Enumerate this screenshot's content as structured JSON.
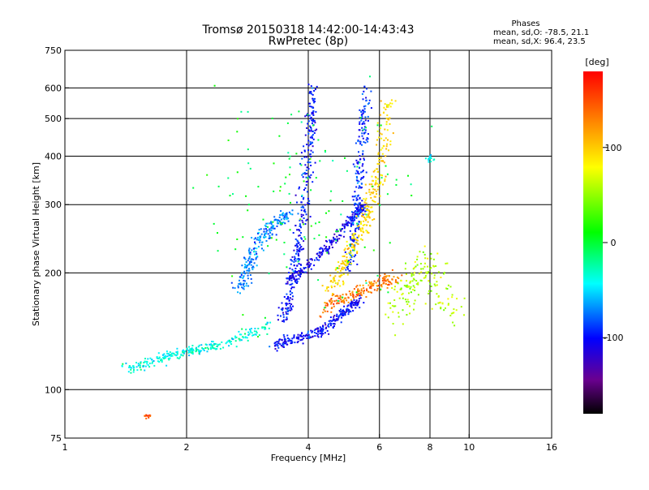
{
  "chart_data": {
    "type": "scatter",
    "title": "Tromsø 20150318 14:42:00-14:43:43",
    "subtitle": "RwPretec (8p)",
    "xlabel": "Frequency [MHz]",
    "ylabel": "Stationary phase Virtual Height [km]",
    "x_scale": "log",
    "y_scale": "log",
    "xlim": [
      1,
      16
    ],
    "ylim": [
      75,
      750
    ],
    "x_ticks": [
      1,
      2,
      4,
      6,
      8,
      10,
      16
    ],
    "y_ticks": [
      75,
      100,
      200,
      300,
      400,
      500,
      600,
      750
    ],
    "x_grid": [
      2,
      4,
      6,
      8,
      10
    ],
    "y_grid": [
      100,
      200,
      300,
      400,
      500,
      600
    ],
    "grid": true,
    "phase_stats": {
      "heading": "Phases",
      "line_o": "mean, sd,O: -78.5, 21.1",
      "line_x": "mean, sd,X:  96.4, 23.5"
    },
    "colorbar": {
      "label": "[deg]",
      "range": [
        -180,
        180
      ],
      "ticks": [
        100,
        0,
        -100
      ],
      "colormap": "rainbow (black-purple-blue-cyan-green-yellow-orange-red)",
      "placement": "right"
    },
    "clusters": [
      {
        "name": "low-frequency cyan trace",
        "phase": -35,
        "points": [
          [
            1.4,
            115
          ],
          [
            1.5,
            113
          ],
          [
            1.6,
            117
          ],
          [
            1.7,
            120
          ],
          [
            1.8,
            122
          ],
          [
            1.9,
            124
          ],
          [
            2.0,
            125
          ],
          [
            2.1,
            126
          ],
          [
            2.2,
            128
          ],
          [
            2.4,
            130
          ],
          [
            2.6,
            134
          ],
          [
            2.8,
            138
          ],
          [
            3.0,
            142
          ],
          [
            3.2,
            146
          ]
        ],
        "spread": 0.03,
        "count": 260
      },
      {
        "name": "F-region rising band",
        "phase": -70,
        "points": [
          [
            2.7,
            180
          ],
          [
            2.8,
            200
          ],
          [
            2.9,
            220
          ],
          [
            3.0,
            240
          ],
          [
            3.2,
            260
          ],
          [
            3.4,
            275
          ],
          [
            3.6,
            285
          ]
        ],
        "spread": 0.04,
        "count": 220
      },
      {
        "name": "dense blue F-trace",
        "phase": -95,
        "points": [
          [
            3.4,
            150
          ],
          [
            3.6,
            170
          ],
          [
            3.7,
            200
          ],
          [
            3.8,
            240
          ],
          [
            3.9,
            300
          ],
          [
            4.0,
            380
          ],
          [
            4.05,
            480
          ],
          [
            4.1,
            600
          ]
        ],
        "spread": 0.035,
        "count": 320
      },
      {
        "name": "lower blue echo band",
        "phase": -100,
        "points": [
          [
            3.3,
            130
          ],
          [
            3.7,
            135
          ],
          [
            4.2,
            140
          ],
          [
            4.6,
            150
          ],
          [
            5.0,
            160
          ],
          [
            5.4,
            170
          ]
        ],
        "spread": 0.03,
        "count": 260
      },
      {
        "name": "mid blue band",
        "phase": -105,
        "points": [
          [
            3.6,
            190
          ],
          [
            4.0,
            210
          ],
          [
            4.4,
            230
          ],
          [
            4.8,
            255
          ],
          [
            5.2,
            280
          ],
          [
            5.5,
            300
          ]
        ],
        "spread": 0.03,
        "count": 220
      },
      {
        "name": "upper blue trace near 5.4 MHz",
        "phase": -90,
        "points": [
          [
            5.0,
            200
          ],
          [
            5.2,
            260
          ],
          [
            5.3,
            320
          ],
          [
            5.4,
            400
          ],
          [
            5.5,
            500
          ],
          [
            5.6,
            600
          ]
        ],
        "spread": 0.03,
        "count": 220
      },
      {
        "name": "yellow X-mode trace",
        "phase": 95,
        "points": [
          [
            4.5,
            180
          ],
          [
            4.8,
            200
          ],
          [
            5.0,
            220
          ],
          [
            5.3,
            250
          ],
          [
            5.6,
            280
          ],
          [
            5.8,
            320
          ],
          [
            6.0,
            380
          ],
          [
            6.2,
            460
          ],
          [
            6.3,
            560
          ]
        ],
        "spread": 0.045,
        "count": 300
      },
      {
        "name": "orange low X band",
        "phase": 135,
        "points": [
          [
            4.3,
            160
          ],
          [
            4.6,
            170
          ],
          [
            5.0,
            175
          ],
          [
            5.4,
            180
          ],
          [
            5.8,
            185
          ],
          [
            6.2,
            190
          ],
          [
            6.6,
            195
          ]
        ],
        "spread": 0.04,
        "count": 180
      },
      {
        "name": "scattered high-frequency echoes",
        "phase": 60,
        "points": [
          [
            6.5,
            150
          ],
          [
            7.0,
            180
          ],
          [
            7.5,
            200
          ],
          [
            8.0,
            220
          ],
          [
            8.5,
            180
          ],
          [
            9.0,
            160
          ]
        ],
        "spread": 0.09,
        "count": 170
      },
      {
        "name": "cyan cluster at 8 MHz",
        "phase": -40,
        "points": [
          [
            8.0,
            395
          ]
        ],
        "spread": 0.02,
        "count": 18
      },
      {
        "name": "orange dots near 1.6 MHz",
        "phase": 150,
        "points": [
          [
            1.6,
            85
          ]
        ],
        "spread": 0.02,
        "count": 12
      },
      {
        "name": "sparse noise",
        "phase": 0,
        "points": [
          [
            4.0,
            300
          ]
        ],
        "spread": 0.6,
        "count": 140
      }
    ]
  }
}
